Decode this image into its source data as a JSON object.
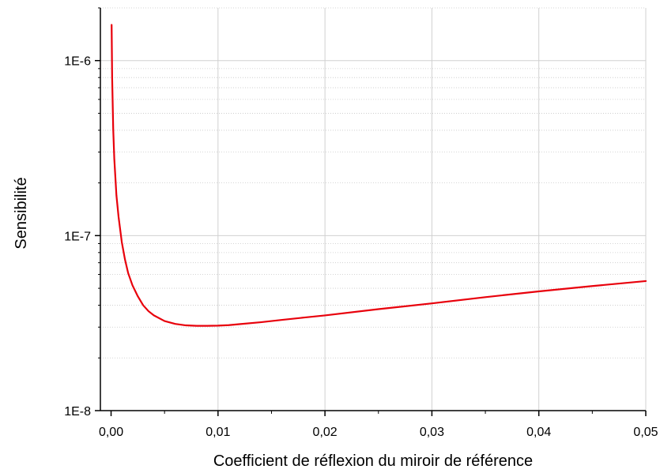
{
  "chart_data": {
    "type": "line",
    "title": "",
    "xlabel": "Coefficient de réflexion du miroir de référence",
    "ylabel": "Sensibilité",
    "xlim": [
      -0.001,
      0.05
    ],
    "ylim": [
      1e-08,
      2e-06
    ],
    "x_scale": "linear",
    "y_scale": "log",
    "x_tick_values": [
      0,
      0.01,
      0.02,
      0.03,
      0.04,
      0.05
    ],
    "x_tick_labels": [
      "0,00",
      "0,01",
      "0,02",
      "0,03",
      "0,04",
      "0,05"
    ],
    "y_tick_values": [
      1e-08,
      1e-07,
      1e-06
    ],
    "y_tick_labels": [
      "1E-8",
      "1E-7",
      "1E-6"
    ],
    "grid": true,
    "series": [
      {
        "color": "#e8000b",
        "x": [
          5e-05,
          0.0001,
          0.0002,
          0.0003,
          0.0005,
          0.0007,
          0.001,
          0.0013,
          0.0016,
          0.002,
          0.0025,
          0.003,
          0.0035,
          0.004,
          0.005,
          0.006,
          0.007,
          0.008,
          0.009,
          0.01,
          0.011,
          0.012,
          0.014,
          0.016,
          0.018,
          0.02,
          0.025,
          0.03,
          0.035,
          0.04,
          0.045,
          0.05
        ],
        "y": [
          1.6e-06,
          8e-07,
          4.05e-07,
          2.75e-07,
          1.7e-07,
          1.28e-07,
          9.2e-08,
          7.3e-08,
          6.1e-08,
          5.2e-08,
          4.5e-08,
          4e-08,
          3.7e-08,
          3.5e-08,
          3.25e-08,
          3.13e-08,
          3.07e-08,
          3.05e-08,
          3.05e-08,
          3.06e-08,
          3.08e-08,
          3.12e-08,
          3.2e-08,
          3.3e-08,
          3.4e-08,
          3.5e-08,
          3.8e-08,
          4.1e-08,
          4.45e-08,
          4.8e-08,
          5.15e-08,
          5.5e-08
        ]
      }
    ]
  }
}
